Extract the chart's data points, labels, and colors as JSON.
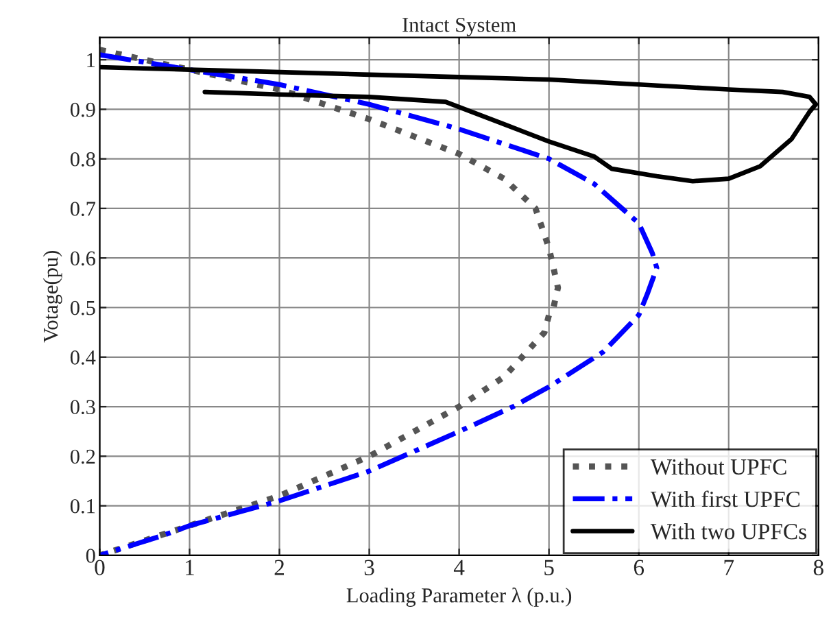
{
  "chart_data": {
    "type": "line",
    "title": "Intact System",
    "xlabel": "Loading Parameter λ (p.u.)",
    "ylabel": "Votage(pu)",
    "xlim": [
      0,
      8
    ],
    "ylim": [
      0,
      1.045
    ],
    "xticks": [
      0,
      1,
      2,
      3,
      4,
      5,
      6,
      7,
      8
    ],
    "yticks": [
      0,
      0.1,
      0.2,
      0.3,
      0.4,
      0.5,
      0.6,
      0.7,
      0.8,
      0.9,
      1
    ],
    "grid": true,
    "legend": "bottom right",
    "marker": "none",
    "series": [
      {
        "name": "Without UPFC",
        "color": "#555555",
        "line_style": "dotted",
        "x": [
          0,
          1,
          2,
          3,
          4,
          4.5,
          4.85,
          5,
          5.1,
          5.05,
          5,
          4.95,
          4.5,
          4,
          3,
          2,
          1,
          0.5,
          0
        ],
        "values": [
          1.02,
          0.98,
          0.94,
          0.88,
          0.81,
          0.76,
          0.7,
          0.62,
          0.54,
          0.5,
          0.485,
          0.45,
          0.36,
          0.3,
          0.2,
          0.12,
          0.06,
          0.03,
          0
        ]
      },
      {
        "name": "With first UPFC",
        "color": "#0000ff",
        "line_style": "dashdot",
        "x": [
          0,
          1,
          2,
          3,
          4,
          5,
          5.5,
          6,
          6.15,
          6.2,
          6.1,
          6,
          5.6,
          5,
          4.6,
          4,
          3,
          2,
          1,
          0.7,
          0
        ],
        "values": [
          1.01,
          0.98,
          0.95,
          0.91,
          0.86,
          0.8,
          0.75,
          0.67,
          0.61,
          0.58,
          0.53,
          0.485,
          0.41,
          0.34,
          0.3,
          0.25,
          0.17,
          0.11,
          0.06,
          0.04,
          0
        ]
      },
      {
        "name": "With two UPFCs",
        "color": "#000000",
        "line_style": "solid",
        "x": [
          0,
          1,
          2,
          3,
          4,
          5,
          6,
          7,
          7.6,
          7.9,
          7.97,
          7.9,
          7.7,
          7.35,
          7,
          6.6,
          6.2,
          5.7,
          5.5,
          5,
          4.5,
          3.85,
          3,
          2,
          1.17
        ],
        "values": [
          0.985,
          0.98,
          0.975,
          0.97,
          0.965,
          0.96,
          0.95,
          0.94,
          0.935,
          0.925,
          0.91,
          0.895,
          0.84,
          0.785,
          0.76,
          0.755,
          0.765,
          0.78,
          0.805,
          0.835,
          0.87,
          0.915,
          0.925,
          0.93,
          0.935
        ]
      }
    ]
  }
}
